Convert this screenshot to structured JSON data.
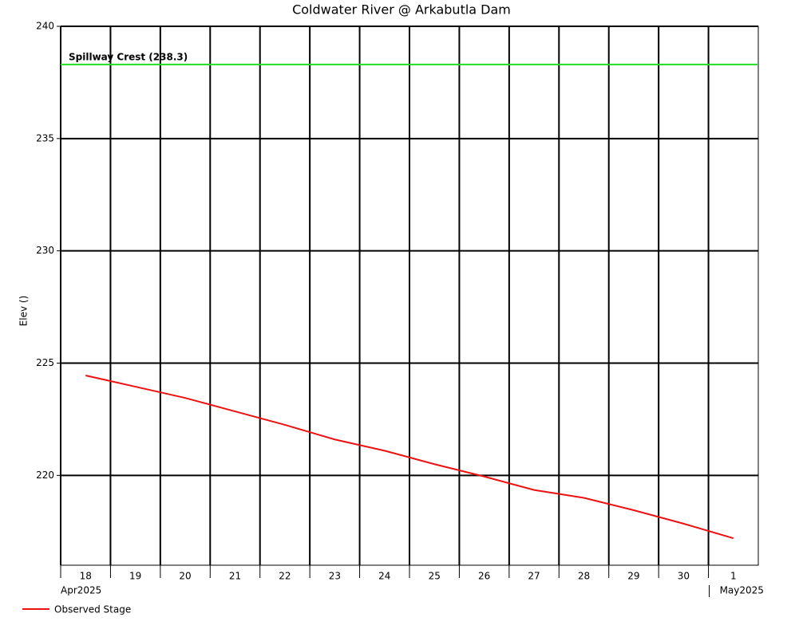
{
  "chart_data": {
    "type": "line",
    "title": "Coldwater River @ Arkabutla Dam",
    "y_label": "Elev ()",
    "x": [
      "2025-04-18",
      "2025-04-19",
      "2025-04-20",
      "2025-04-21",
      "2025-04-22",
      "2025-04-23",
      "2025-04-24",
      "2025-04-25",
      "2025-04-26",
      "2025-04-27",
      "2025-04-28",
      "2025-04-29",
      "2025-04-30",
      "2025-05-01"
    ],
    "series": [
      {
        "name": "Observed Stage",
        "color": "#ee1111",
        "values": [
          224.45,
          223.95,
          223.45,
          222.85,
          222.25,
          221.6,
          221.1,
          220.5,
          219.95,
          219.35,
          219.0,
          218.45,
          217.85,
          217.2
        ]
      }
    ],
    "xticks": [
      {
        "value": "2025-04-18",
        "label": "18"
      },
      {
        "value": "2025-04-19",
        "label": "19"
      },
      {
        "value": "2025-04-20",
        "label": "20"
      },
      {
        "value": "2025-04-21",
        "label": "21"
      },
      {
        "value": "2025-04-22",
        "label": "22"
      },
      {
        "value": "2025-04-23",
        "label": "23"
      },
      {
        "value": "2025-04-24",
        "label": "24"
      },
      {
        "value": "2025-04-25",
        "label": "25"
      },
      {
        "value": "2025-04-26",
        "label": "26"
      },
      {
        "value": "2025-04-27",
        "label": "27"
      },
      {
        "value": "2025-04-28",
        "label": "28"
      },
      {
        "value": "2025-04-29",
        "label": "29"
      },
      {
        "value": "2025-04-30",
        "label": "30"
      },
      {
        "value": "2025-05-01",
        "label": "1"
      }
    ],
    "month_labels": [
      {
        "value": "2025-04-18",
        "label": "Apr2025"
      },
      {
        "value": "2025-05-01",
        "label": "May2025"
      }
    ],
    "ylim": [
      216,
      240
    ],
    "yticks": [
      220,
      225,
      230,
      235,
      240
    ],
    "grid": true,
    "reference_line": {
      "text": "Spillway Crest (238.3)",
      "value": 238.3,
      "color": "#22dd22"
    }
  }
}
